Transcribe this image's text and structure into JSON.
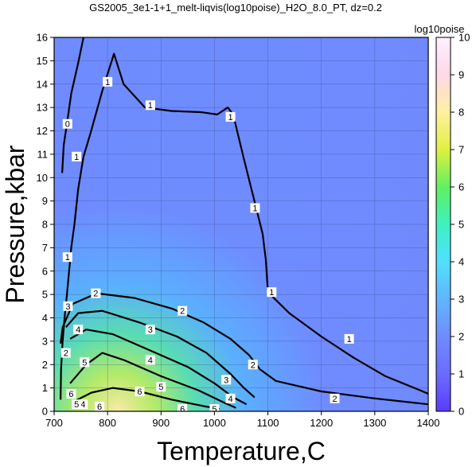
{
  "chart_data": {
    "type": "heatmap",
    "title": "GS2005_3e1-1+1_melt-liqvis(log10poise)_H2O_8.0_PT, dz=0.2",
    "xlabel": "Temperature,C",
    "ylabel": "Pressure,kbar",
    "xlim": [
      700,
      1400
    ],
    "ylim": [
      0,
      16
    ],
    "xticks": [
      700,
      800,
      900,
      1000,
      1100,
      1200,
      1300,
      1400
    ],
    "yticks": [
      0,
      1,
      2,
      3,
      4,
      5,
      6,
      7,
      8,
      9,
      10,
      11,
      12,
      13,
      14,
      15,
      16
    ],
    "grid": true,
    "colorbar": {
      "label": "log10poise",
      "range": [
        0,
        10
      ],
      "ticks": [
        0,
        1,
        2,
        3,
        4,
        5,
        6,
        7,
        8,
        9,
        10
      ],
      "colors": [
        "#5a3cff",
        "#6b6cff",
        "#6f8cff",
        "#62b5ff",
        "#50e0ff",
        "#40f0c0",
        "#60f060",
        "#e0f040",
        "#fff0a0",
        "#ffd8e8",
        "#fff0ff"
      ]
    },
    "contours": [
      {
        "level": 0,
        "points": [
          [
            715,
            10.2
          ],
          [
            718,
            11.4
          ],
          [
            724,
            12.3
          ],
          [
            732,
            13.6
          ],
          [
            745,
            14.9
          ],
          [
            755,
            16
          ]
        ]
      },
      {
        "level": 1,
        "points": [
          [
            712,
            0.5
          ],
          [
            713,
            1.8
          ],
          [
            716,
            3
          ],
          [
            720,
            4.1
          ],
          [
            724,
            5
          ],
          [
            728,
            6
          ],
          [
            732,
            7
          ],
          [
            738,
            8
          ],
          [
            745,
            9.5
          ],
          [
            755,
            10.9
          ],
          [
            768,
            11.9
          ],
          [
            790,
            13.7
          ],
          [
            812,
            15.3
          ],
          [
            830,
            14
          ],
          [
            870,
            13
          ],
          [
            920,
            12.85
          ],
          [
            975,
            12.8
          ],
          [
            1005,
            12.7
          ],
          [
            1025,
            13
          ],
          [
            1035,
            12.7
          ],
          [
            1055,
            10.8
          ],
          [
            1077,
            8.8
          ],
          [
            1090,
            7.6
          ],
          [
            1096,
            6.5
          ],
          [
            1100,
            5.1
          ],
          [
            1140,
            4.2
          ],
          [
            1200,
            3.2
          ],
          [
            1260,
            2.3
          ],
          [
            1320,
            1.5
          ],
          [
            1385,
            0.9
          ],
          [
            1400,
            0.75
          ]
        ]
      },
      {
        "level": 2,
        "points": [
          [
            712,
            2.9
          ],
          [
            716,
            3.6
          ],
          [
            735,
            4.6
          ],
          [
            780,
            5.05
          ],
          [
            850,
            4.85
          ],
          [
            920,
            4.4
          ],
          [
            980,
            3.8
          ],
          [
            1030,
            3.1
          ],
          [
            1065,
            2.4
          ],
          [
            1085,
            1.8
          ],
          [
            1115,
            1.3
          ],
          [
            1200,
            0.85
          ],
          [
            1300,
            0.55
          ],
          [
            1400,
            0.3
          ]
        ]
      },
      {
        "level": 3,
        "points": [
          [
            722,
            3.6
          ],
          [
            745,
            4.2
          ],
          [
            790,
            4.3
          ],
          [
            860,
            3.8
          ],
          [
            930,
            3.2
          ],
          [
            985,
            2.5
          ],
          [
            1030,
            1.6
          ],
          [
            1055,
            1.0
          ],
          [
            1075,
            0.6
          ]
        ]
      },
      {
        "level": 4,
        "points": [
          [
            730,
            3.1
          ],
          [
            760,
            3.5
          ],
          [
            810,
            3.3
          ],
          [
            880,
            2.6
          ],
          [
            950,
            1.9
          ],
          [
            1000,
            1.2
          ],
          [
            1035,
            0.6
          ],
          [
            1060,
            0.3
          ]
        ]
      },
      {
        "level": 5,
        "points": [
          [
            730,
            1.2
          ],
          [
            760,
            2.0
          ],
          [
            790,
            2.5
          ],
          [
            830,
            2.2
          ],
          [
            900,
            1.5
          ],
          [
            970,
            0.9
          ],
          [
            1020,
            0.35
          ],
          [
            1040,
            0.15
          ]
        ]
      },
      {
        "level": 6,
        "points": [
          [
            735,
            0.4
          ],
          [
            770,
            0.8
          ],
          [
            810,
            1.0
          ],
          [
            860,
            0.85
          ],
          [
            920,
            0.5
          ],
          [
            980,
            0.22
          ],
          [
            1010,
            0.1
          ]
        ]
      }
    ],
    "contour_labels": [
      {
        "text": "0",
        "t": 725,
        "p": 12.3
      },
      {
        "text": "1",
        "t": 800,
        "p": 14.1
      },
      {
        "text": "1",
        "t": 880,
        "p": 13.1
      },
      {
        "text": "1",
        "t": 1030,
        "p": 12.6
      },
      {
        "text": "1",
        "t": 1076,
        "p": 8.7
      },
      {
        "text": "1",
        "t": 1107,
        "p": 5.1
      },
      {
        "text": "1",
        "t": 1252,
        "p": 3.1
      },
      {
        "text": "1",
        "t": 742,
        "p": 10.9
      },
      {
        "text": "1",
        "t": 725,
        "p": 6.6
      },
      {
        "text": "2",
        "t": 778,
        "p": 5.05
      },
      {
        "text": "2",
        "t": 940,
        "p": 4.3
      },
      {
        "text": "2",
        "t": 1072,
        "p": 2.0
      },
      {
        "text": "2",
        "t": 1225,
        "p": 0.55
      },
      {
        "text": "2",
        "t": 722,
        "p": 2.5
      },
      {
        "text": "3",
        "t": 726,
        "p": 4.5
      },
      {
        "text": "3",
        "t": 880,
        "p": 3.5
      },
      {
        "text": "3",
        "t": 1022,
        "p": 1.35
      },
      {
        "text": "4",
        "t": 745,
        "p": 3.5
      },
      {
        "text": "4",
        "t": 880,
        "p": 2.2
      },
      {
        "text": "4",
        "t": 1030,
        "p": 0.55
      },
      {
        "text": "5",
        "t": 757,
        "p": 2.1
      },
      {
        "text": "5",
        "t": 900,
        "p": 1.05
      },
      {
        "text": "5",
        "t": 1000,
        "p": 0.1
      },
      {
        "text": "6",
        "t": 860,
        "p": 0.85
      },
      {
        "text": "6",
        "t": 785,
        "p": 0.2
      },
      {
        "text": "6",
        "t": 940,
        "p": 0.1
      },
      {
        "text": "6",
        "t": 732,
        "p": 0.75
      },
      {
        "text": "4",
        "t": 754,
        "p": 0.3
      },
      {
        "text": "5",
        "t": 742,
        "p": 0.3
      }
    ]
  }
}
